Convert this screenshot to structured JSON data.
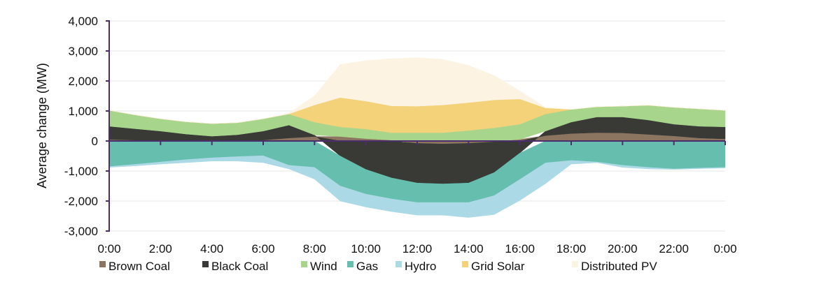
{
  "chart_data": {
    "type": "area",
    "stacked": true,
    "title": "",
    "xlabel": "",
    "ylabel": "Average change (MW)",
    "ylim": [
      -3000,
      4000
    ],
    "yticks": [
      4000,
      3000,
      2000,
      1000,
      0,
      -1000,
      -2000,
      -3000
    ],
    "ytick_labels": [
      "4,000",
      "3,000",
      "2,000",
      "1,000",
      "0",
      "-1,000",
      "-2,000",
      "-3,000"
    ],
    "xlim": [
      0,
      24
    ],
    "xticks": [
      0,
      2,
      4,
      6,
      8,
      10,
      12,
      14,
      16,
      18,
      20,
      22,
      24
    ],
    "xtick_labels": [
      "0:00",
      "2:00",
      "4:00",
      "6:00",
      "8:00",
      "10:00",
      "12:00",
      "14:00",
      "16:00",
      "18:00",
      "20:00",
      "22:00",
      "0:00"
    ],
    "grid": true,
    "legend_position": "bottom",
    "x": [
      0,
      1,
      2,
      3,
      4,
      5,
      6,
      7,
      8,
      9,
      10,
      11,
      12,
      13,
      14,
      15,
      16,
      17,
      18,
      19,
      20,
      21,
      22,
      23,
      24
    ],
    "series": [
      {
        "name": "Brown Coal",
        "color": "#8c7560",
        "values": [
          50,
          30,
          20,
          0,
          0,
          10,
          30,
          100,
          150,
          150,
          80,
          30,
          -80,
          -100,
          -80,
          -30,
          50,
          180,
          250,
          280,
          270,
          220,
          170,
          100,
          70
        ]
      },
      {
        "name": "Black Coal",
        "color": "#393a36",
        "values": [
          440,
          380,
          310,
          230,
          160,
          200,
          300,
          430,
          50,
          -500,
          -950,
          -1230,
          -1320,
          -1330,
          -1320,
          -1020,
          -400,
          150,
          380,
          520,
          530,
          480,
          390,
          390,
          400
        ]
      },
      {
        "name": "Wind",
        "color": "#a8d58c",
        "values": [
          530,
          460,
          410,
          410,
          420,
          400,
          410,
          370,
          430,
          320,
          320,
          250,
          280,
          280,
          350,
          440,
          510,
          570,
          420,
          340,
          360,
          490,
          560,
          580,
          550
        ]
      },
      {
        "name": "Gas",
        "color": "#66bfae",
        "values": [
          -850,
          -780,
          -700,
          -620,
          -560,
          -520,
          -490,
          -810,
          -880,
          -1000,
          -820,
          -700,
          -650,
          -620,
          -650,
          -770,
          -880,
          -730,
          -650,
          -700,
          -810,
          -880,
          -930,
          -900,
          -880
        ]
      },
      {
        "name": "Hydro",
        "color": "#acd9e6",
        "values": [
          -30,
          -50,
          -70,
          -100,
          -110,
          -150,
          -230,
          -120,
          -390,
          -500,
          -430,
          -420,
          -420,
          -420,
          -500,
          -630,
          -700,
          -690,
          -120,
          -20,
          -70,
          -50,
          -20,
          -20,
          -20
        ]
      },
      {
        "name": "Grid Solar",
        "color": "#f4d27a",
        "values": [
          0,
          0,
          0,
          0,
          0,
          0,
          0,
          0,
          570,
          980,
          930,
          890,
          880,
          920,
          930,
          930,
          840,
          200,
          0,
          0,
          0,
          0,
          0,
          0,
          0
        ]
      },
      {
        "name": "Distributed PV",
        "color": "#fcf3e2",
        "values": [
          0,
          0,
          0,
          0,
          0,
          0,
          0,
          30,
          300,
          1100,
          1350,
          1570,
          1620,
          1520,
          1240,
          810,
          270,
          20,
          0,
          0,
          0,
          0,
          0,
          0,
          0
        ]
      }
    ]
  }
}
